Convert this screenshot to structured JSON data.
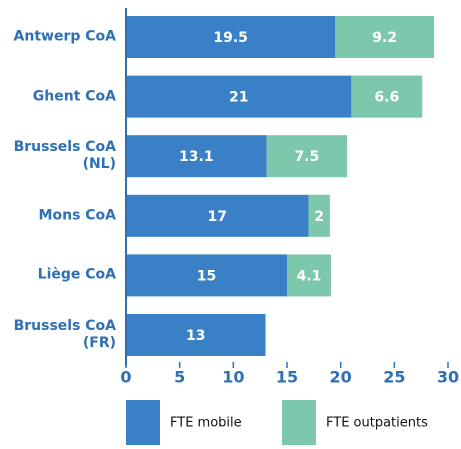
{
  "chart_data": {
    "type": "bar",
    "orientation": "horizontal",
    "stacked": true,
    "categories": [
      "Antwerp CoA",
      "Ghent CoA",
      "Brussels CoA (NL)",
      "Mons CoA",
      "Liège CoA",
      "Brussels CoA (FR)"
    ],
    "series": [
      {
        "name": "FTE mobile",
        "color": "#3a80c6",
        "values": [
          19.5,
          21,
          13.1,
          17,
          15,
          13
        ]
      },
      {
        "name": "FTE outpatients",
        "color": "#7dc8ad",
        "values": [
          9.2,
          6.6,
          7.5,
          2,
          4.1,
          null
        ]
      }
    ],
    "xlim": [
      0,
      30
    ],
    "xticks": [
      0,
      5,
      10,
      15,
      20,
      25,
      30
    ],
    "legend": "bottom"
  }
}
